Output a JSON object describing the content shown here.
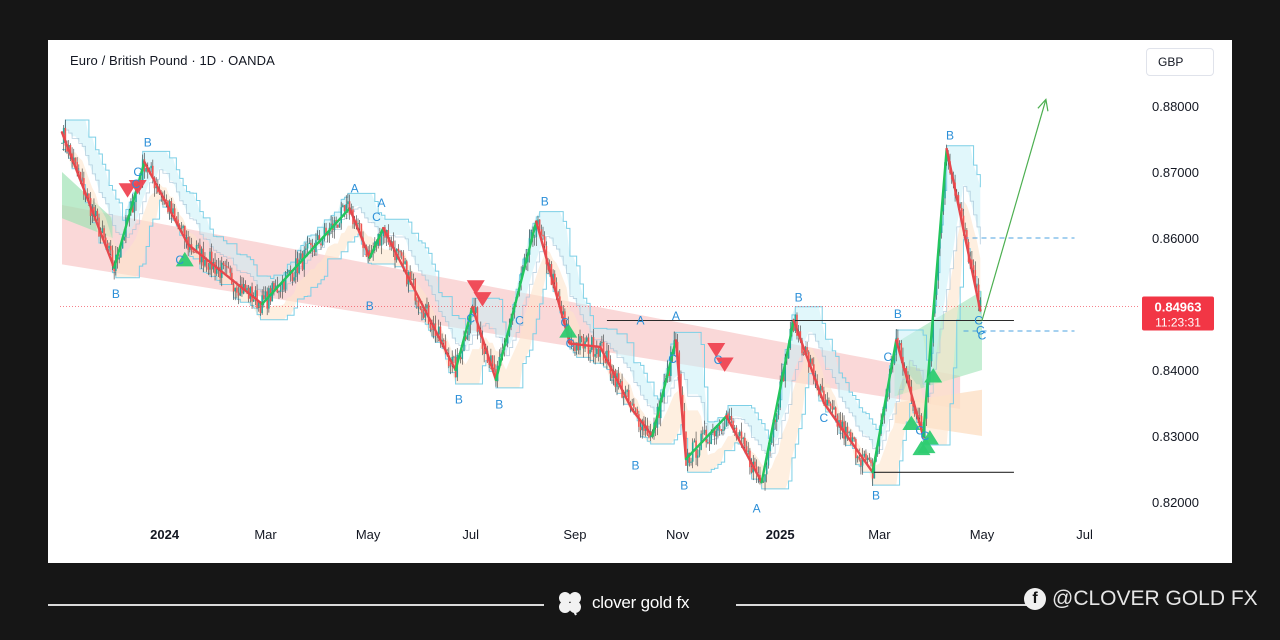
{
  "header": {
    "title": "Euro / British Pound · 1D · OANDA",
    "currency": "GBP"
  },
  "footer": {
    "brand": "clover gold fx",
    "social": "@CLOVER GOLD FX"
  },
  "colors": {
    "up": "#26a69a",
    "down": "#ef5350",
    "wave_up": "#22c55e",
    "wave_down": "#e5484d",
    "label": "#2b8fd8",
    "price_badge": "#f23645",
    "hline": "#2b2b2b",
    "projection": "#4caf50"
  },
  "chart_data": {
    "type": "candlestick",
    "symbol": "EURGBP",
    "timeframe": "1D",
    "ylim": [
      0.817,
      0.885
    ],
    "y_ticks": [
      "0.88000",
      "0.87000",
      "0.86000",
      "0.84000",
      "0.83000",
      "0.82000"
    ],
    "x_ticks": [
      "2024",
      "Mar",
      "May",
      "Jul",
      "Sep",
      "Nov",
      "2025",
      "Mar",
      "May",
      "Jul"
    ],
    "last_price": "0.84963",
    "countdown": "11:23:31",
    "levels": [
      {
        "kind": "solid",
        "value": 0.8475,
        "from": "2024-09-20",
        "to": "2025-05-20"
      },
      {
        "kind": "solid",
        "value": 0.8245,
        "from": "2025-02-25",
        "to": "2025-05-20"
      },
      {
        "kind": "dashed",
        "value": 0.86,
        "from": "2025-04-20",
        "to": "2025-06-25"
      },
      {
        "kind": "dashed",
        "value": 0.8459,
        "from": "2025-04-20",
        "to": "2025-06-25"
      }
    ],
    "projection": {
      "from": [
        "2025-05-01",
        0.8475
      ],
      "to": [
        "2025-06-08",
        0.881
      ]
    },
    "zigzag": [
      [
        "2023-11-01",
        0.876
      ],
      [
        "2023-12-02",
        0.8555
      ],
      [
        "2023-12-20",
        0.8715
      ],
      [
        "2024-01-15",
        0.859
      ],
      [
        "2024-02-28",
        0.85
      ],
      [
        "2024-04-20",
        0.8645
      ],
      [
        "2024-05-02",
        0.857
      ],
      [
        "2024-05-10",
        0.8615
      ],
      [
        "2024-06-22",
        0.84
      ],
      [
        "2024-07-02",
        0.8495
      ],
      [
        "2024-07-16",
        0.8385
      ],
      [
        "2024-08-09",
        0.8625
      ],
      [
        "2024-08-29",
        0.844
      ],
      [
        "2024-09-16",
        0.8435
      ],
      [
        "2024-10-05",
        0.834
      ],
      [
        "2024-10-17",
        0.83
      ],
      [
        "2024-10-31",
        0.8445
      ],
      [
        "2024-11-06",
        0.8265
      ],
      [
        "2024-11-30",
        0.833
      ],
      [
        "2024-12-21",
        0.823
      ],
      [
        "2025-01-09",
        0.8475
      ],
      [
        "2025-01-27",
        0.835
      ],
      [
        "2025-02-25",
        0.8245
      ],
      [
        "2025-03-11",
        0.8445
      ],
      [
        "2025-03-27",
        0.83
      ],
      [
        "2025-04-10",
        0.8735
      ],
      [
        "2025-04-30",
        0.849
      ]
    ],
    "wave_labels": [
      {
        "t": "B",
        "x": "2023-12-22",
        "y": 0.8745
      },
      {
        "t": "C",
        "x": "2023-12-16",
        "y": 0.87
      },
      {
        "t": "C",
        "x": "2023-12-15",
        "y": 0.8682
      },
      {
        "t": "B",
        "x": "2023-12-03",
        "y": 0.8515
      },
      {
        "t": "C",
        "x": "2024-01-10",
        "y": 0.8567
      },
      {
        "t": "A",
        "x": "2024-04-23",
        "y": 0.8675
      },
      {
        "t": "A",
        "x": "2024-05-09",
        "y": 0.8653
      },
      {
        "t": "C",
        "x": "2024-05-06",
        "y": 0.8632
      },
      {
        "t": "B",
        "x": "2024-05-02",
        "y": 0.8497
      },
      {
        "t": "C",
        "x": "2024-07-01",
        "y": 0.8478
      },
      {
        "t": "B",
        "x": "2024-06-24",
        "y": 0.8355
      },
      {
        "t": "B",
        "x": "2024-07-18",
        "y": 0.8348
      },
      {
        "t": "C",
        "x": "2024-07-30",
        "y": 0.8475
      },
      {
        "t": "B",
        "x": "2024-08-14",
        "y": 0.8655
      },
      {
        "t": "C",
        "x": "2024-08-26",
        "y": 0.8472
      },
      {
        "t": "C",
        "x": "2024-08-29",
        "y": 0.844
      },
      {
        "t": "A",
        "x": "2024-10-10",
        "y": 0.8475
      },
      {
        "t": "A",
        "x": "2024-10-31",
        "y": 0.8482
      },
      {
        "t": "C",
        "x": "2024-10-29",
        "y": 0.8417
      },
      {
        "t": "B",
        "x": "2024-10-07",
        "y": 0.8255
      },
      {
        "t": "B",
        "x": "2024-11-05",
        "y": 0.8225
      },
      {
        "t": "C",
        "x": "2024-11-25",
        "y": 0.8415
      },
      {
        "t": "A",
        "x": "2024-12-18",
        "y": 0.819
      },
      {
        "t": "B",
        "x": "2025-01-12",
        "y": 0.851
      },
      {
        "t": "C",
        "x": "2025-01-27",
        "y": 0.8327
      },
      {
        "t": "B",
        "x": "2025-02-27",
        "y": 0.821
      },
      {
        "t": "B",
        "x": "2025-03-12",
        "y": 0.8485
      },
      {
        "t": "C",
        "x": "2025-03-06",
        "y": 0.842
      },
      {
        "t": "C",
        "x": "2025-03-25",
        "y": 0.8308
      },
      {
        "t": "C",
        "x": "2025-03-28",
        "y": 0.83
      },
      {
        "t": "B",
        "x": "2025-04-12",
        "y": 0.8755
      },
      {
        "t": "C",
        "x": "2025-04-29",
        "y": 0.8475
      },
      {
        "t": "C",
        "x": "2025-04-30",
        "y": 0.846
      },
      {
        "t": "C",
        "x": "2025-05-01",
        "y": 0.8452
      }
    ],
    "signals": [
      {
        "dir": "down",
        "x": "2023-12-10",
        "y": 0.8672
      },
      {
        "dir": "down",
        "x": "2023-12-16",
        "y": 0.8677
      },
      {
        "dir": "up",
        "x": "2024-01-13",
        "y": 0.8568
      },
      {
        "dir": "down",
        "x": "2024-07-04",
        "y": 0.8525
      },
      {
        "dir": "down",
        "x": "2024-07-08",
        "y": 0.8507
      },
      {
        "dir": "up",
        "x": "2024-08-28",
        "y": 0.846
      },
      {
        "dir": "down",
        "x": "2024-11-24",
        "y": 0.843
      },
      {
        "dir": "down",
        "x": "2024-11-29",
        "y": 0.8408
      },
      {
        "dir": "up",
        "x": "2025-03-20",
        "y": 0.832
      },
      {
        "dir": "up",
        "x": "2025-03-26",
        "y": 0.8282
      },
      {
        "dir": "up",
        "x": "2025-03-31",
        "y": 0.8298
      },
      {
        "dir": "up",
        "x": "2025-04-02",
        "y": 0.8392
      },
      {
        "dir": "up",
        "x": "2025-03-29",
        "y": 0.8285
      }
    ]
  }
}
